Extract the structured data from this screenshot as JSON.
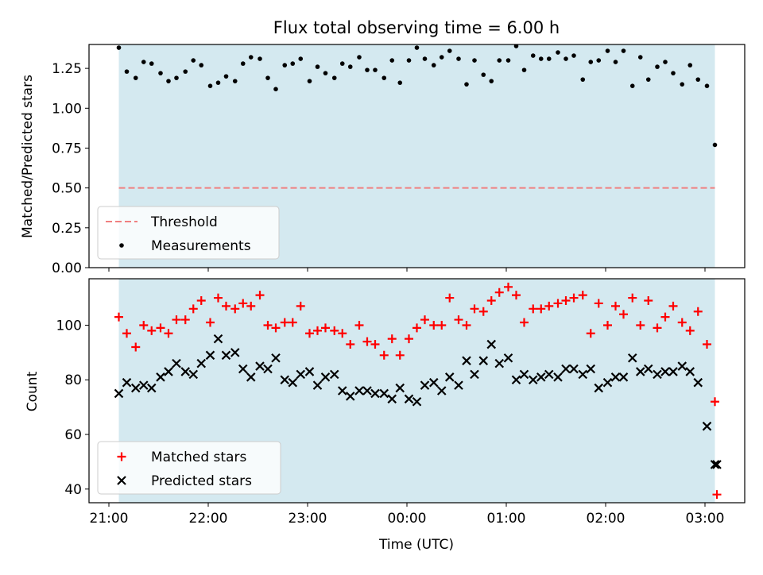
{
  "chart_data": {
    "title": "Flux total observing time = 6.00 h",
    "xlabel": "Time (UTC)",
    "x_unit": "hours since 21:00 UTC",
    "xlim": [
      -0.2,
      6.4
    ],
    "x_ticks": [
      {
        "value": 0,
        "label": "21:00"
      },
      {
        "value": 1,
        "label": "22:00"
      },
      {
        "value": 2,
        "label": "23:00"
      },
      {
        "value": 3,
        "label": "00:00"
      },
      {
        "value": 4,
        "label": "01:00"
      },
      {
        "value": 5,
        "label": "02:00"
      },
      {
        "value": 6,
        "label": "03:00"
      }
    ],
    "shaded_span": {
      "start": 0.1,
      "end": 6.1,
      "color": "#d4e9f0"
    },
    "charts": [
      {
        "type": "scatter",
        "ylabel": "Matched/Predicted stars",
        "ylim": [
          0,
          1.4
        ],
        "y_ticks": [
          0.0,
          0.25,
          0.5,
          0.75,
          1.0,
          1.25
        ],
        "y_tick_labels": [
          "0.00",
          "0.25",
          "0.50",
          "0.75",
          "1.00",
          "1.25"
        ],
        "legend": {
          "position": "lower-left",
          "entries": [
            "Threshold",
            "Measurements"
          ]
        },
        "series": [
          {
            "name": "Threshold",
            "kind": "hline",
            "value": 0.5,
            "color": "#f08080",
            "style": "dashed"
          },
          {
            "name": "Measurements",
            "kind": "dots",
            "color": "#000000",
            "x": [
              0.1,
              0.18,
              0.27,
              0.35,
              0.43,
              0.52,
              0.6,
              0.68,
              0.77,
              0.85,
              0.93,
              1.02,
              1.1,
              1.18,
              1.27,
              1.35,
              1.43,
              1.52,
              1.6,
              1.68,
              1.77,
              1.85,
              1.93,
              2.02,
              2.1,
              2.18,
              2.27,
              2.35,
              2.43,
              2.52,
              2.6,
              2.68,
              2.77,
              2.85,
              2.93,
              3.02,
              3.1,
              3.18,
              3.27,
              3.35,
              3.43,
              3.52,
              3.6,
              3.68,
              3.77,
              3.85,
              3.93,
              4.02,
              4.1,
              4.18,
              4.27,
              4.35,
              4.43,
              4.52,
              4.6,
              4.68,
              4.77,
              4.85,
              4.93,
              5.02,
              5.1,
              5.18,
              5.27,
              5.35,
              5.43,
              5.52,
              5.6,
              5.68,
              5.77,
              5.85,
              5.93,
              6.02,
              6.1
            ],
            "y": [
              1.38,
              1.23,
              1.19,
              1.29,
              1.28,
              1.22,
              1.17,
              1.19,
              1.23,
              1.3,
              1.27,
              1.14,
              1.16,
              1.2,
              1.17,
              1.28,
              1.32,
              1.31,
              1.19,
              1.12,
              1.27,
              1.28,
              1.31,
              1.17,
              1.26,
              1.22,
              1.19,
              1.28,
              1.26,
              1.32,
              1.24,
              1.24,
              1.19,
              1.3,
              1.16,
              1.3,
              1.38,
              1.31,
              1.27,
              1.32,
              1.36,
              1.31,
              1.15,
              1.3,
              1.21,
              1.17,
              1.3,
              1.3,
              1.39,
              1.24,
              1.33,
              1.31,
              1.31,
              1.35,
              1.31,
              1.33,
              1.18,
              1.29,
              1.3,
              1.36,
              1.29,
              1.36,
              1.14,
              1.32,
              1.18,
              1.26,
              1.29,
              1.22,
              1.15,
              1.27,
              1.18,
              1.14,
              0.77
            ]
          }
        ]
      },
      {
        "type": "scatter",
        "ylabel": "Count",
        "ylim": [
          35,
          117
        ],
        "y_ticks": [
          40,
          60,
          80,
          100
        ],
        "y_tick_labels": [
          "40",
          "60",
          "80",
          "100"
        ],
        "legend": {
          "position": "lower-left",
          "entries": [
            "Matched stars",
            "Predicted stars"
          ]
        },
        "series": [
          {
            "name": "Matched stars",
            "marker": "plus",
            "color": "#ff0000",
            "x": [
              0.1,
              0.18,
              0.27,
              0.35,
              0.43,
              0.52,
              0.6,
              0.68,
              0.77,
              0.85,
              0.93,
              1.02,
              1.1,
              1.18,
              1.27,
              1.35,
              1.43,
              1.52,
              1.6,
              1.68,
              1.77,
              1.85,
              1.93,
              2.02,
              2.1,
              2.18,
              2.27,
              2.35,
              2.43,
              2.52,
              2.6,
              2.68,
              2.77,
              2.85,
              2.93,
              3.02,
              3.1,
              3.18,
              3.27,
              3.35,
              3.43,
              3.52,
              3.6,
              3.68,
              3.77,
              3.85,
              3.93,
              4.02,
              4.1,
              4.18,
              4.27,
              4.35,
              4.43,
              4.52,
              4.6,
              4.68,
              4.77,
              4.85,
              4.93,
              5.02,
              5.1,
              5.18,
              5.27,
              5.35,
              5.43,
              5.52,
              5.6,
              5.68,
              5.77,
              5.85,
              5.93,
              6.02,
              6.1
            ],
            "y": [
              103,
              97,
              92,
              100,
              98,
              99,
              97,
              102,
              102,
              106,
              109,
              101,
              110,
              107,
              106,
              108,
              107,
              111,
              100,
              99,
              101,
              101,
              107,
              97,
              98,
              99,
              98,
              97,
              93,
              100,
              94,
              93,
              89,
              95,
              89,
              95,
              99,
              102,
              100,
              100,
              110,
              102,
              100,
              106,
              105,
              109,
              112,
              114,
              111,
              101,
              106,
              106,
              107,
              108,
              109,
              110,
              111,
              97,
              108,
              100,
              107,
              104,
              110,
              100,
              109,
              99,
              103,
              107,
              101,
              98,
              105,
              93,
              72
            ]
          },
          {
            "name": "Predicted stars",
            "marker": "x",
            "color": "#000000",
            "x": [
              0.1,
              0.18,
              0.27,
              0.35,
              0.43,
              0.52,
              0.6,
              0.68,
              0.77,
              0.85,
              0.93,
              1.02,
              1.1,
              1.18,
              1.27,
              1.35,
              1.43,
              1.52,
              1.6,
              1.68,
              1.77,
              1.85,
              1.93,
              2.02,
              2.1,
              2.18,
              2.27,
              2.35,
              2.43,
              2.52,
              2.6,
              2.68,
              2.77,
              2.85,
              2.93,
              3.02,
              3.1,
              3.18,
              3.27,
              3.35,
              3.43,
              3.52,
              3.6,
              3.68,
              3.77,
              3.85,
              3.93,
              4.02,
              4.1,
              4.18,
              4.27,
              4.35,
              4.43,
              4.52,
              4.6,
              4.68,
              4.77,
              4.85,
              4.93,
              5.02,
              5.1,
              5.18,
              5.27,
              5.35,
              5.43,
              5.52,
              5.6,
              5.68,
              5.77,
              5.85,
              5.93,
              6.02,
              6.1
            ],
            "y": [
              75,
              79,
              77,
              78,
              77,
              81,
              83,
              86,
              83,
              82,
              86,
              89,
              95,
              89,
              90,
              84,
              81,
              85,
              84,
              88,
              80,
              79,
              82,
              83,
              78,
              81,
              82,
              76,
              74,
              76,
              76,
              75,
              75,
              73,
              77,
              73,
              72,
              78,
              79,
              76,
              81,
              78,
              87,
              82,
              87,
              93,
              86,
              88,
              80,
              82,
              80,
              81,
              82,
              81,
              84,
              84,
              82,
              84,
              77,
              79,
              81,
              81,
              88,
              83,
              84,
              82,
              83,
              83,
              85,
              83,
              79,
              63,
              49
            ]
          }
        ],
        "extra_points": [
          {
            "series": "Matched stars",
            "x": 6.12,
            "y": 38
          },
          {
            "series": "Predicted stars",
            "x": 6.12,
            "y": 49
          }
        ]
      }
    ]
  }
}
